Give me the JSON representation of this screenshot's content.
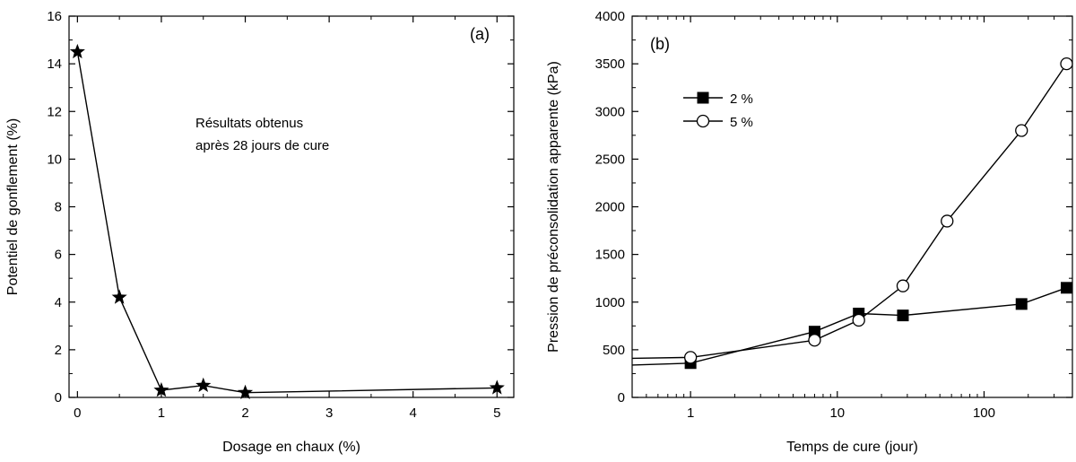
{
  "chart_data": [
    {
      "type": "line",
      "panel_label": "(a)",
      "xlabel": "Dosage en chaux (%)",
      "ylabel": "Potentiel de gonflement (%)",
      "annotation": [
        "Résultats obtenus",
        "après 28 jours de cure"
      ],
      "x_ticks": [
        "0",
        "1",
        "2",
        "3",
        "4",
        "5"
      ],
      "y_ticks": [
        "0",
        "2",
        "4",
        "6",
        "8",
        "10",
        "12",
        "14",
        "16"
      ],
      "xlim": [
        -0.1,
        5.2
      ],
      "ylim": [
        0,
        16
      ],
      "marker": "star",
      "series": [
        {
          "x": [
            0,
            0.5,
            1,
            1.5,
            2,
            5
          ],
          "y": [
            14.5,
            4.2,
            0.3,
            0.5,
            0.2,
            0.4
          ]
        }
      ]
    },
    {
      "type": "line",
      "panel_label": "(b)",
      "xlabel": "Temps de cure (jour)",
      "ylabel": "Pression de préconsolidation apparente (kPa)",
      "x_scale": "log",
      "x_ticks": [
        "1",
        "10",
        "100"
      ],
      "y_ticks": [
        "0",
        "500",
        "1000",
        "1500",
        "2000",
        "2500",
        "3000",
        "3500",
        "4000"
      ],
      "xlim": [
        0.4,
        400
      ],
      "ylim": [
        0,
        4000
      ],
      "legend_position": "upper-left",
      "series": [
        {
          "name": "2 %",
          "marker": "filled-square",
          "x": [
            1,
            7,
            14,
            28,
            180,
            365
          ],
          "y": [
            360,
            690,
            880,
            860,
            980,
            1150
          ],
          "lead_in_y": 340
        },
        {
          "name": "5 %",
          "marker": "open-circle",
          "x": [
            1,
            7,
            14,
            28,
            56,
            180,
            365
          ],
          "y": [
            420,
            600,
            810,
            1170,
            1850,
            2800,
            3500
          ],
          "lead_in_y": 410
        }
      ]
    }
  ]
}
